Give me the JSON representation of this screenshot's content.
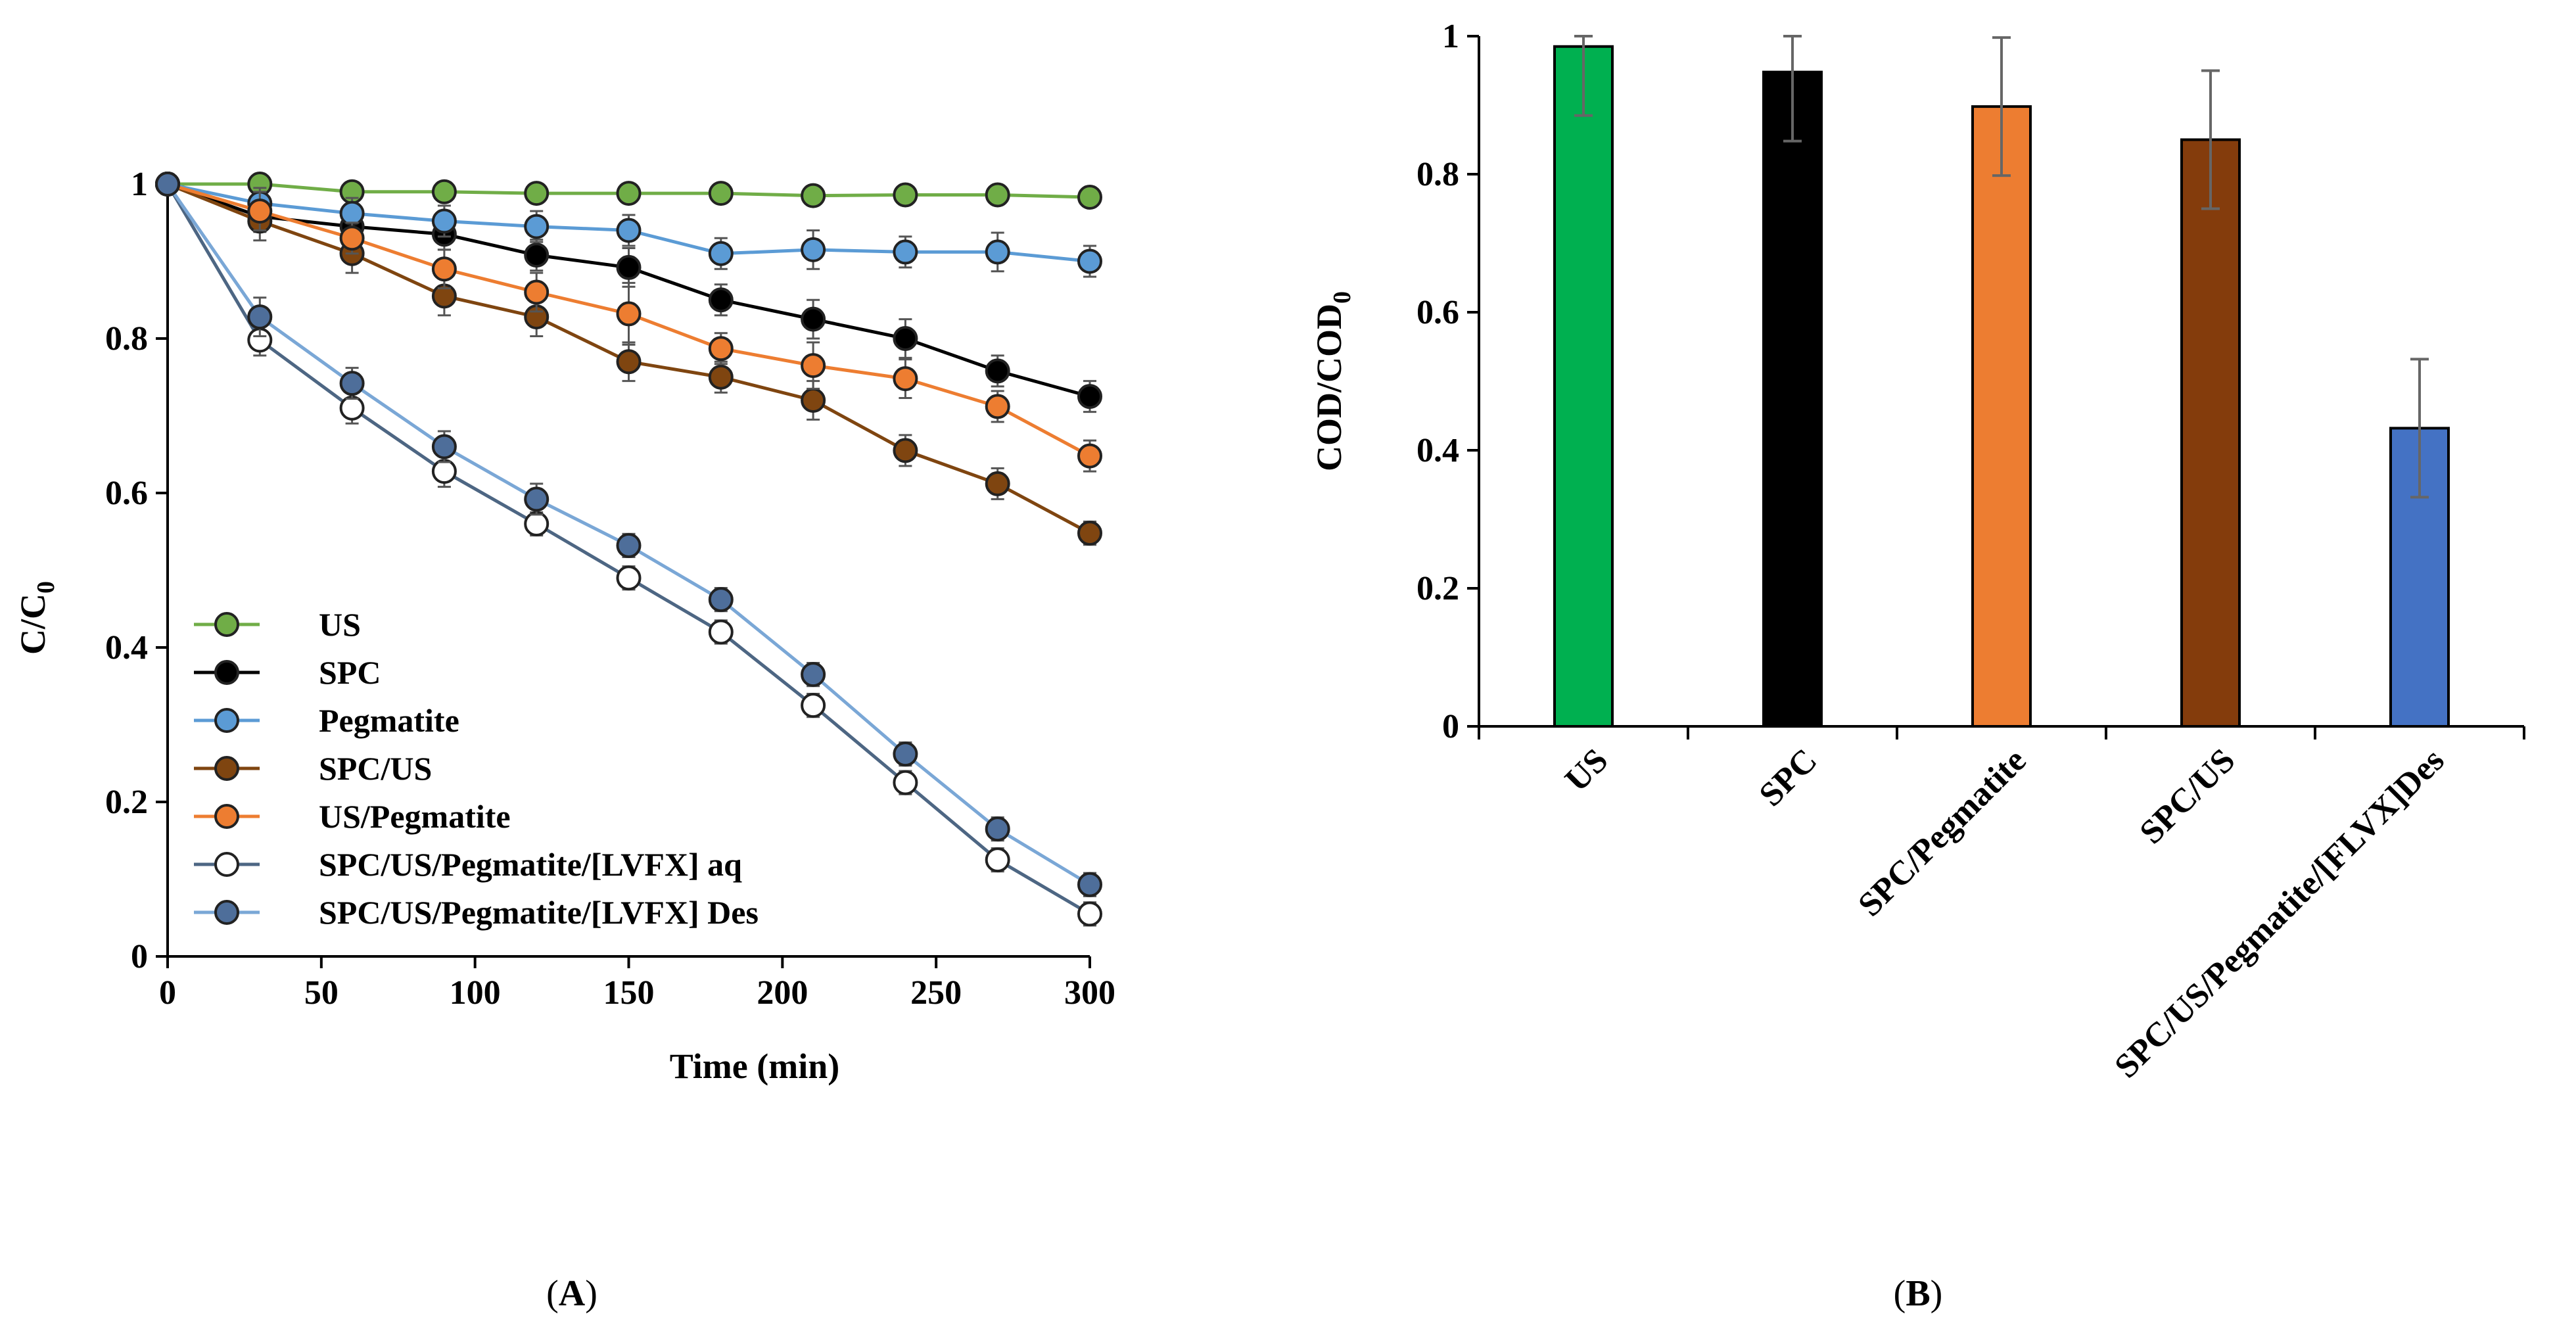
{
  "colors": {
    "US": "#70ad47",
    "SPC": "#000000",
    "Pegmatite": "#5b9bd5",
    "SPC/US": "#7f4510",
    "US/Pegmatite": "#ed7d31",
    "aq": "#ffffff",
    "Des": "#4e6e9a",
    "error": "#808080"
  },
  "chart_data": [
    {
      "panel_label": "A",
      "type": "line",
      "xlabel": "Time (min)",
      "ylabel": "C/C",
      "ylabel_sub": "0",
      "xlim": [
        0,
        300
      ],
      "ylim": [
        0,
        1
      ],
      "xticks": [
        0,
        50,
        100,
        150,
        200,
        250,
        300
      ],
      "yticks": [
        0,
        0.2,
        0.4,
        0.6,
        0.8,
        1
      ],
      "ytick_labels": [
        "0",
        "0.2",
        "0.4",
        "0.6",
        "0.8",
        "1"
      ],
      "legend": "lower-left",
      "x": [
        0,
        30,
        60,
        90,
        120,
        150,
        180,
        210,
        240,
        270,
        300
      ],
      "series": [
        {
          "name": "US",
          "marker_fill": "#70ad47",
          "line": "#70ad47",
          "values": [
            1.0,
            1.0,
            0.99,
            0.99,
            0.988,
            0.988,
            0.988,
            0.985,
            0.986,
            0.986,
            0.983
          ],
          "err": [
            0.01,
            0.01,
            0.01,
            0.01,
            0.01,
            0.01,
            0.01,
            0.01,
            0.01,
            0.01,
            0.01
          ]
        },
        {
          "name": "SPC",
          "marker_fill": "#000000",
          "line": "#000000",
          "values": [
            1.0,
            0.958,
            0.945,
            0.935,
            0.908,
            0.892,
            0.85,
            0.825,
            0.8,
            0.758,
            0.725
          ],
          "err": [
            0.01,
            0.02,
            0.02,
            0.02,
            0.02,
            0.025,
            0.02,
            0.025,
            0.025,
            0.02,
            0.02
          ]
        },
        {
          "name": "Pegmatite",
          "marker_fill": "#5b9bd5",
          "line": "#5b9bd5",
          "values": [
            1.0,
            0.975,
            0.962,
            0.952,
            0.945,
            0.94,
            0.91,
            0.915,
            0.912,
            0.912,
            0.9
          ],
          "err": [
            0.01,
            0.02,
            0.02,
            0.02,
            0.02,
            0.02,
            0.02,
            0.025,
            0.02,
            0.025,
            0.02
          ]
        },
        {
          "name": "SPC/US",
          "marker_fill": "#7f4510",
          "line": "#7f4510",
          "values": [
            1.0,
            0.952,
            0.91,
            0.855,
            0.828,
            0.77,
            0.75,
            0.72,
            0.655,
            0.612,
            0.548
          ],
          "err": [
            0.01,
            0.025,
            0.025,
            0.025,
            0.025,
            0.025,
            0.02,
            0.025,
            0.02,
            0.02,
            0.015
          ]
        },
        {
          "name": "US/Pegmatite",
          "marker_fill": "#ed7d31",
          "line": "#ed7d31",
          "values": [
            1.0,
            0.965,
            0.93,
            0.89,
            0.86,
            0.832,
            0.787,
            0.765,
            0.748,
            0.712,
            0.648
          ],
          "err": [
            0.01,
            0.025,
            0.02,
            0.025,
            0.025,
            0.04,
            0.02,
            0.03,
            0.025,
            0.02,
            0.02
          ]
        },
        {
          "name": "SPC/US/Pegmatite/[LVFX] aq",
          "marker_fill": "#ffffff",
          "line": "#4d6683",
          "values": [
            1.0,
            0.798,
            0.71,
            0.628,
            0.56,
            0.49,
            0.42,
            0.325,
            0.225,
            0.125,
            0.055
          ],
          "err": [
            0.01,
            0.02,
            0.02,
            0.02,
            0.015,
            0.015,
            0.015,
            0.015,
            0.015,
            0.015,
            0.015
          ]
        },
        {
          "name": "SPC/US/Pegmatite/[LVFX] Des",
          "marker_fill": "#4e6e9a",
          "line": "#7aa7d6",
          "values": [
            1.0,
            0.828,
            0.742,
            0.66,
            0.592,
            0.532,
            0.462,
            0.365,
            0.262,
            0.165,
            0.093
          ],
          "err": [
            0.01,
            0.025,
            0.02,
            0.02,
            0.02,
            0.015,
            0.015,
            0.015,
            0.015,
            0.015,
            0.015
          ]
        }
      ]
    },
    {
      "panel_label": "B",
      "type": "bar",
      "xlabel": "",
      "ylabel": "COD/COD",
      "ylabel_sub": "0",
      "ylim": [
        0,
        1
      ],
      "yticks": [
        0,
        0.2,
        0.4,
        0.6,
        0.8,
        1
      ],
      "ytick_labels": [
        "0",
        "0.2",
        "0.4",
        "0.6",
        "0.8",
        "1"
      ],
      "categories": [
        "US",
        "SPC",
        "SPC/Pegmatite",
        "SPC/US",
        "SPC/US/Pegmatite/[FLVX]Des"
      ],
      "values": [
        0.985,
        0.948,
        0.898,
        0.85,
        0.432
      ],
      "err": [
        0.1,
        0.1,
        0.1,
        0.1,
        0.1
      ],
      "bar_colors": [
        "#00b050",
        "#000000",
        "#ed7d31",
        "#843c0c",
        "#4472c4"
      ]
    }
  ]
}
